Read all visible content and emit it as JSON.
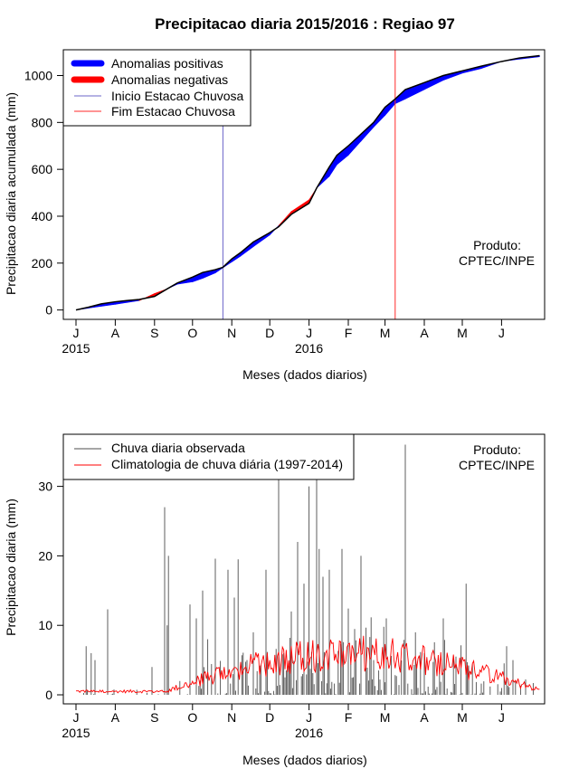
{
  "title": "Precipitacao diaria 2015/2016 : Regiao 97",
  "chart_data": [
    {
      "type": "area",
      "ylabel": "Precipitacao diaria acumulada (mm)",
      "xlabel": "Meses (dados diarios)",
      "ylim": [
        -40,
        1110
      ],
      "yticks": [
        0,
        200,
        400,
        600,
        800,
        1000
      ],
      "xlim_days": [
        -10,
        370
      ],
      "month_ticks": [
        {
          "label": "J",
          "day": 0
        },
        {
          "label": "A",
          "day": 31
        },
        {
          "label": "S",
          "day": 62
        },
        {
          "label": "O",
          "day": 92
        },
        {
          "label": "N",
          "day": 123
        },
        {
          "label": "D",
          "day": 153
        },
        {
          "label": "J",
          "day": 184
        },
        {
          "label": "F",
          "day": 215
        },
        {
          "label": "M",
          "day": 244
        },
        {
          "label": "A",
          "day": 275
        },
        {
          "label": "M",
          "day": 305
        },
        {
          "label": "J",
          "day": 336
        }
      ],
      "year_labels": [
        {
          "label": "2015",
          "day": 0
        },
        {
          "label": "2016",
          "day": 184
        }
      ],
      "rainy_season_start_day": 116,
      "rainy_season_end_day": 252,
      "observed_cumulative": {
        "x": [
          0,
          10,
          20,
          31,
          40,
          50,
          62,
          72,
          80,
          92,
          100,
          110,
          116,
          123,
          130,
          140,
          153,
          160,
          170,
          184,
          190,
          200,
          206,
          215,
          225,
          235,
          244,
          252,
          260,
          275,
          290,
          305,
          320,
          336,
          350,
          366
        ],
        "y": [
          0,
          12,
          26,
          35,
          40,
          45,
          58,
          90,
          115,
          140,
          160,
          172,
          182,
          218,
          245,
          290,
          330,
          355,
          408,
          455,
          520,
          610,
          660,
          700,
          750,
          800,
          865,
          900,
          940,
          970,
          1000,
          1020,
          1040,
          1060,
          1075,
          1085
        ]
      },
      "climatology_cumulative": {
        "x": [
          0,
          10,
          20,
          31,
          40,
          50,
          62,
          72,
          80,
          92,
          100,
          110,
          116,
          123,
          130,
          140,
          153,
          160,
          170,
          184,
          190,
          200,
          206,
          215,
          225,
          235,
          244,
          252,
          260,
          275,
          290,
          305,
          320,
          336,
          350,
          366
        ],
        "y": [
          0,
          8,
          16,
          24,
          32,
          40,
          70,
          90,
          110,
          120,
          135,
          158,
          180,
          205,
          230,
          270,
          320,
          360,
          420,
          470,
          520,
          570,
          620,
          660,
          720,
          780,
          830,
          880,
          900,
          940,
          980,
          1010,
          1030,
          1060,
          1070,
          1080
        ]
      },
      "legend": [
        {
          "label": "Anomalias positivas",
          "color": "#0000ff"
        },
        {
          "label": "Anomalias negativas",
          "color": "#ff0000"
        },
        {
          "label": "Inicio Estacao Chuvosa",
          "color": "#6b64c9"
        },
        {
          "label": "Fim Estacao Chuvosa",
          "color": "#ff2a2a"
        }
      ],
      "annotation": [
        "Produto:",
        "CPTEC/INPE"
      ]
    },
    {
      "type": "bar",
      "ylabel": "Precipitacao diaria (mm)",
      "xlabel": "Meses (dados diarios)",
      "ylim": [
        -1.3,
        37.5
      ],
      "yticks": [
        0,
        10,
        20,
        30
      ],
      "xlim_days": [
        -10,
        370
      ],
      "month_ticks": [
        {
          "label": "J",
          "day": 0
        },
        {
          "label": "A",
          "day": 31
        },
        {
          "label": "S",
          "day": 62
        },
        {
          "label": "O",
          "day": 92
        },
        {
          "label": "N",
          "day": 123
        },
        {
          "label": "D",
          "day": 153
        },
        {
          "label": "J",
          "day": 184
        },
        {
          "label": "F",
          "day": 215
        },
        {
          "label": "M",
          "day": 244
        },
        {
          "label": "A",
          "day": 275
        },
        {
          "label": "M",
          "day": 305
        },
        {
          "label": "J",
          "day": 336
        }
      ],
      "year_labels": [
        {
          "label": "2015",
          "day": 0
        },
        {
          "label": "2016",
          "day": 184
        }
      ],
      "observed_daily_peaks": {
        "day": [
          8,
          12,
          15,
          25,
          60,
          70,
          72,
          73,
          90,
          95,
          100,
          104,
          110,
          120,
          125,
          128,
          135,
          140,
          150,
          160,
          164,
          170,
          175,
          180,
          184,
          190,
          192,
          195,
          200,
          210,
          225,
          235,
          245,
          260,
          268,
          275,
          290,
          300,
          308,
          340,
          345
        ],
        "mm": [
          7,
          6,
          5,
          12.3,
          4,
          27,
          10,
          20,
          13,
          11,
          15,
          8,
          19.6,
          18,
          14,
          19.5,
          5,
          9,
          18,
          32,
          6,
          12,
          22,
          16,
          30,
          31,
          21,
          17,
          18,
          21,
          20,
          5,
          11,
          36,
          9,
          6,
          11,
          5.5,
          16,
          7,
          5
        ]
      },
      "legend": [
        {
          "label": "Chuva diaria observada",
          "color": "#4d4d4d"
        },
        {
          "label": "Climatologia de chuva diária (1997-2014)",
          "color": "#ff0000"
        }
      ],
      "annotation": [
        "Produto:",
        "CPTEC/INPE"
      ]
    }
  ]
}
